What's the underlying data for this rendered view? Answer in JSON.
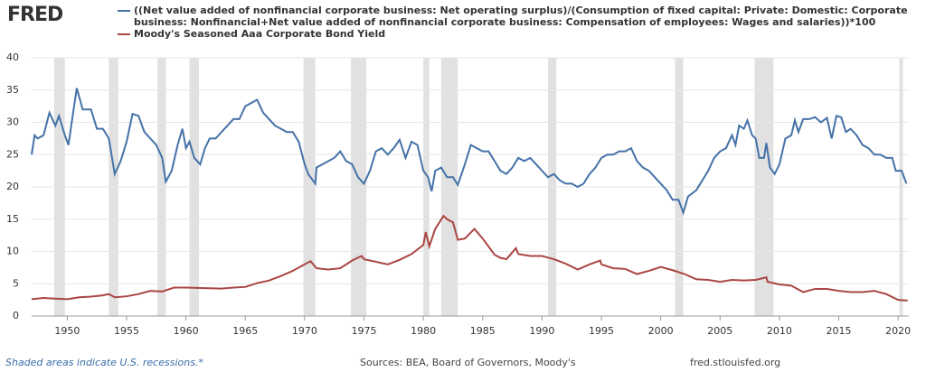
{
  "logo": "FRED",
  "chart_data": {
    "type": "line",
    "series": [
      {
        "name": "((Net value added of nonfinancial corporate business: Net operating surplus)/(Consumption of fixed capital: Private: Domestic: Corporate business: Nonfinancial+Net value added of nonfinancial corporate business: Compensation of employees: Wages and salaries))*100",
        "color": "#4572a7",
        "x": [
          1947,
          1947.25,
          1947.5,
          1948,
          1948.5,
          1949,
          1949.3,
          1949.8,
          1950.1,
          1950.8,
          1951.3,
          1952,
          1952.5,
          1953,
          1953.5,
          1954,
          1954.5,
          1955,
          1955.5,
          1956,
          1956.5,
          1957,
          1957.5,
          1958,
          1958.3,
          1958.8,
          1959.3,
          1959.7,
          1960,
          1960.3,
          1960.7,
          1961.2,
          1961.6,
          1962,
          1962.5,
          1963,
          1963.5,
          1964,
          1964.5,
          1965,
          1966,
          1966.5,
          1967,
          1967.5,
          1968,
          1968.5,
          1969,
          1969.5,
          1970,
          1970.3,
          1970.7,
          1970.9,
          1971,
          1971.5,
          1972,
          1972.5,
          1973,
          1973.5,
          1974,
          1974.5,
          1975,
          1975.5,
          1976,
          1976.5,
          1977,
          1977.5,
          1978,
          1978.5,
          1979,
          1979.5,
          1980,
          1980.4,
          1980.7,
          1981,
          1981.5,
          1982,
          1982.5,
          1982.9,
          1983.5,
          1984,
          1984.5,
          1985,
          1985.5,
          1986,
          1986.5,
          1987,
          1987.5,
          1988,
          1988.5,
          1989,
          1989.5,
          1990,
          1990.5,
          1991,
          1991.5,
          1992,
          1992.5,
          1993,
          1993.5,
          1994,
          1994.5,
          1995,
          1995.5,
          1996,
          1996.5,
          1997,
          1997.5,
          1998,
          1998.5,
          1999,
          1999.5,
          2000,
          2000.5,
          2001,
          2001.5,
          2001.9,
          2002.3,
          2003,
          2003.5,
          2004,
          2004.5,
          2005,
          2005.5,
          2006,
          2006.3,
          2006.6,
          2007,
          2007.3,
          2007.7,
          2008,
          2008.3,
          2008.7,
          2008.9,
          2009.2,
          2009.6,
          2010,
          2010.5,
          2011,
          2011.3,
          2011.6,
          2012,
          2012.5,
          2013,
          2013.5,
          2014,
          2014.4,
          2014.8,
          2015.2,
          2015.6,
          2016,
          2016.5,
          2017,
          2017.5,
          2018,
          2018.5,
          2019,
          2019.5,
          2019.8,
          2020.3,
          2020.7
        ],
        "values": [
          25,
          28,
          27.5,
          28,
          31.5,
          29.5,
          31,
          28,
          26.5,
          35.3,
          32,
          32,
          29,
          29,
          27.5,
          22,
          24,
          27,
          31.3,
          31,
          28.5,
          27.5,
          26.5,
          24.5,
          20.8,
          22.5,
          26.5,
          29,
          26,
          27,
          24.5,
          23.5,
          26,
          27.5,
          27.5,
          28.5,
          29.5,
          30.5,
          30.5,
          32.5,
          33.5,
          31.5,
          30.5,
          29.5,
          29,
          28.5,
          28.5,
          27,
          23.5,
          22,
          21,
          20.5,
          23,
          23.5,
          24,
          24.5,
          25.5,
          24,
          23.5,
          21.5,
          20.5,
          22.5,
          25.5,
          26,
          25,
          26,
          27.3,
          24.5,
          27,
          26.5,
          22.5,
          21.5,
          19.3,
          22.5,
          23,
          21.5,
          21.5,
          20.3,
          23.5,
          26.5,
          26,
          25.5,
          25.5,
          24,
          22.5,
          22,
          23,
          24.5,
          24,
          24.5,
          23.5,
          22.5,
          21.5,
          22,
          21,
          20.5,
          20.5,
          20,
          20.5,
          22,
          23,
          24.5,
          25,
          25,
          25.5,
          25.5,
          26,
          24,
          23,
          22.5,
          21.5,
          20.5,
          19.5,
          18,
          18,
          16,
          18.5,
          19.5,
          21,
          22.5,
          24.5,
          25.5,
          26,
          28,
          26.5,
          29.5,
          29,
          30.3,
          28,
          27.5,
          24.5,
          24.5,
          26.8,
          23,
          22,
          23.5,
          27.5,
          28,
          30.3,
          28.5,
          30.5,
          30.5,
          30.8,
          30,
          30.7,
          27.5,
          31,
          30.8,
          28.5,
          29,
          28,
          26.5,
          26,
          25,
          25,
          24.5,
          24.5,
          22.5,
          22.5,
          20.5
        ]
      },
      {
        "name": "Moody's Seasoned Aaa Corporate Bond Yield",
        "color": "#aa4643",
        "x": [
          1947,
          1948,
          1949,
          1950,
          1951,
          1952,
          1953,
          1953.5,
          1954,
          1955,
          1956,
          1957,
          1958,
          1959,
          1960,
          1961,
          1962,
          1963,
          1964,
          1965,
          1966,
          1967,
          1968,
          1969,
          1970,
          1970.5,
          1971,
          1972,
          1973,
          1974,
          1974.8,
          1975,
          1976,
          1977,
          1978,
          1979,
          1980,
          1980.2,
          1980.5,
          1981,
          1981.7,
          1982,
          1982.5,
          1982.9,
          1983.5,
          1984.3,
          1985,
          1986,
          1986.5,
          1987,
          1987.8,
          1988,
          1989,
          1990,
          1991,
          1992,
          1993,
          1994,
          1994.9,
          1995,
          1996,
          1997,
          1998,
          1999,
          2000,
          2001,
          2002,
          2003,
          2004,
          2005,
          2006,
          2007,
          2008,
          2008.9,
          2009,
          2010,
          2011,
          2012,
          2013,
          2014,
          2015,
          2016,
          2017,
          2018,
          2019,
          2020,
          2020.8
        ],
        "values": [
          2.6,
          2.8,
          2.7,
          2.6,
          2.9,
          3.0,
          3.2,
          3.4,
          2.9,
          3.05,
          3.4,
          3.9,
          3.8,
          4.4,
          4.4,
          4.35,
          4.3,
          4.25,
          4.4,
          4.5,
          5.1,
          5.5,
          6.2,
          7.0,
          8.0,
          8.5,
          7.4,
          7.2,
          7.4,
          8.6,
          9.3,
          8.8,
          8.4,
          8.0,
          8.7,
          9.6,
          11,
          13,
          10.8,
          13.5,
          15.5,
          15,
          14.5,
          11.8,
          12,
          13.5,
          12,
          9.5,
          9,
          8.8,
          10.5,
          9.6,
          9.3,
          9.3,
          8.8,
          8.1,
          7.2,
          8.0,
          8.6,
          8.0,
          7.4,
          7.3,
          6.5,
          7.0,
          7.6,
          7.1,
          6.5,
          5.7,
          5.6,
          5.3,
          5.6,
          5.5,
          5.6,
          6.0,
          5.3,
          4.9,
          4.7,
          3.7,
          4.2,
          4.2,
          3.9,
          3.7,
          3.7,
          3.9,
          3.4,
          2.5,
          2.4
        ]
      }
    ],
    "recessions": [
      [
        1948.9,
        1949.8
      ],
      [
        1953.5,
        1954.3
      ],
      [
        1957.6,
        1958.3
      ],
      [
        1960.3,
        1961.1
      ],
      [
        1969.9,
        1970.9
      ],
      [
        1973.9,
        1975.2
      ],
      [
        1980.0,
        1980.5
      ],
      [
        1981.5,
        1982.9
      ],
      [
        1990.5,
        1991.2
      ],
      [
        2001.2,
        2001.9
      ],
      [
        2007.9,
        2009.5
      ],
      [
        2020.1,
        2020.4
      ]
    ],
    "xlim": [
      1947,
      2020.9
    ],
    "xticks": [
      1950,
      1955,
      1960,
      1965,
      1970,
      1975,
      1980,
      1985,
      1990,
      1995,
      2000,
      2005,
      2010,
      2015,
      2020
    ],
    "ylim": [
      0,
      40
    ],
    "yticks": [
      0,
      5,
      10,
      15,
      20,
      25,
      30,
      35,
      40
    ],
    "grid": true,
    "notes": [
      "Shaded areas indicate U.S. recessions.*",
      "Sources: BEA, Board of Governors, Moody's",
      "fred.stlouisfed.org"
    ]
  }
}
